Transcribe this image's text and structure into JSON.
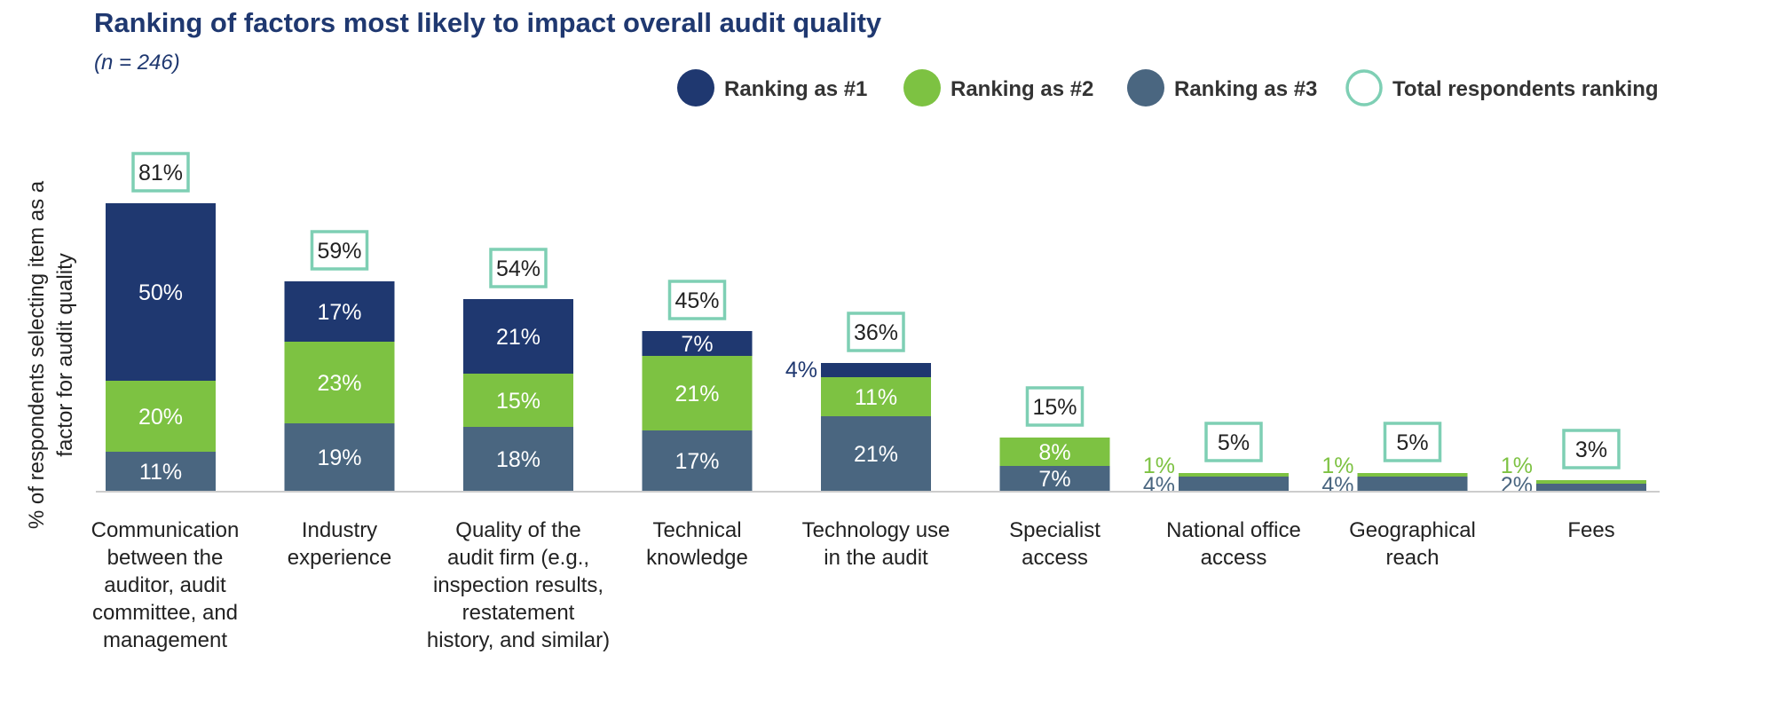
{
  "chart_data": {
    "type": "bar",
    "stacked": true,
    "title": "Ranking of factors most likely to impact overall audit quality",
    "subtitle": "(n = 246)",
    "ylabel_lines": [
      "% of respondents selecting item as a",
      "factor for audit quality"
    ],
    "xlabel": "",
    "ylim": [
      0,
      100
    ],
    "legend_position": "top-right",
    "categories": [
      [
        "Communication",
        "between the",
        "auditor, audit",
        "committee, and",
        "management"
      ],
      [
        "Industry",
        "experience"
      ],
      [
        "Quality of the",
        "audit firm (e.g.,",
        "inspection results,",
        "restatement",
        "history, and similar)"
      ],
      [
        "Technical",
        "knowledge"
      ],
      [
        "Technology use",
        "in the audit"
      ],
      [
        "Specialist",
        "access"
      ],
      [
        "National office",
        "access"
      ],
      [
        "Geographical",
        "reach"
      ],
      [
        "Fees"
      ]
    ],
    "series": [
      {
        "name": "Ranking as #3",
        "color": "#4a6680",
        "values": [
          11,
          19,
          18,
          17,
          21,
          7,
          4,
          4,
          2
        ]
      },
      {
        "name": "Ranking as #2",
        "color": "#7dc242",
        "values": [
          20,
          23,
          15,
          21,
          11,
          8,
          1,
          1,
          1
        ]
      },
      {
        "name": "Ranking as #1",
        "color": "#1f3870",
        "values": [
          50,
          17,
          21,
          7,
          4,
          0,
          0,
          0,
          0
        ]
      }
    ],
    "totals": {
      "name": "Total respondents ranking",
      "color": "#7ecfb4",
      "values": [
        81,
        59,
        54,
        45,
        36,
        15,
        5,
        5,
        3
      ]
    },
    "legend_order": [
      "Ranking as #1",
      "Ranking as #2",
      "Ranking as #3",
      "Total respondents ranking"
    ],
    "value_suffix": "%",
    "colors": {
      "title": "#1f3870",
      "subtitle": "#1f3870",
      "axis_text": "#222222",
      "baseline": "#cccccc",
      "inside_label": "#ffffff"
    }
  }
}
